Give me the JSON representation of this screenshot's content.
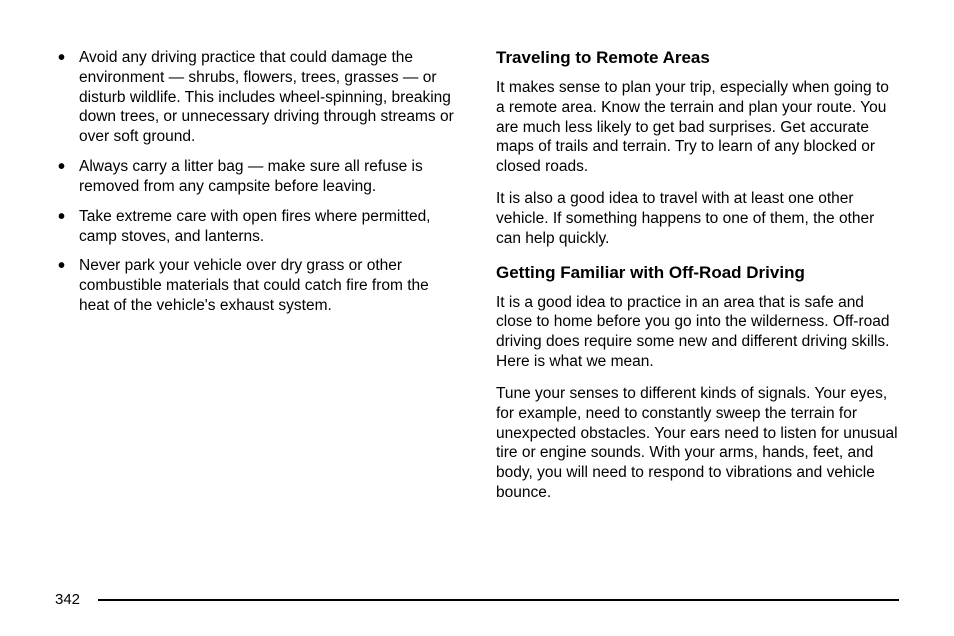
{
  "page": {
    "background_color": "#ffffff",
    "text_color": "#000000",
    "font_family": "Arial, Helvetica, sans-serif",
    "body_fontsize": 15.5,
    "heading_fontsize": 17,
    "line_height": 1.28
  },
  "left_column": {
    "bullets": [
      "Avoid any driving practice that could damage the environment — shrubs, flowers, trees, grasses — or disturb wildlife. This includes wheel-spinning, breaking down trees, or unnecessary driving through streams or over soft ground.",
      "Always carry a litter bag — make sure all refuse is removed from any campsite before leaving.",
      "Take extreme care with open fires where permitted, camp stoves, and lanterns.",
      "Never park your vehicle over dry grass or other combustible materials that could catch fire from the heat of the vehicle's exhaust system."
    ]
  },
  "right_column": {
    "section1": {
      "heading": "Traveling to Remote Areas",
      "paragraphs": [
        "It makes sense to plan your trip, especially when going to a remote area. Know the terrain and plan your route. You are much less likely to get bad surprises. Get accurate maps of trails and terrain. Try to learn of any blocked or closed roads.",
        "It is also a good idea to travel with at least one other vehicle. If something happens to one of them, the other can help quickly."
      ]
    },
    "section2": {
      "heading": "Getting Familiar with Off-Road Driving",
      "paragraphs": [
        "It is a good idea to practice in an area that is safe and close to home before you go into the wilderness. Off-road driving does require some new and different driving skills. Here is what we mean.",
        "Tune your senses to different kinds of signals. Your eyes, for example, need to constantly sweep the terrain for unexpected obstacles. Your ears need to listen for unusual tire or engine sounds. With your arms, hands, feet, and body, you will need to respond to vibrations and vehicle bounce."
      ]
    }
  },
  "footer": {
    "page_number": "342",
    "line_color": "#000000"
  }
}
